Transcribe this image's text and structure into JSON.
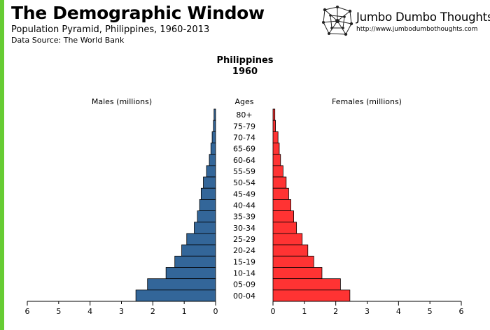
{
  "header": {
    "title": "The Demographic Window",
    "subtitle": "Population Pyramid, Philippines, 1960-2013",
    "source": "Data Source: The World Bank",
    "accent_color": "#66cc33"
  },
  "brand": {
    "name": "Jumbo Dumbo Thoughts",
    "url": "http://www.jumbodumbothoughts.com",
    "logo_icon": "network-globe-icon"
  },
  "chart_data": {
    "type": "bar",
    "orientation": "horizontal",
    "title": "Philippines",
    "subtitle": "1960",
    "left_label": "Males (millions)",
    "center_label": "Ages",
    "right_label": "Females (millions)",
    "xlim": [
      0,
      6
    ],
    "ticks": [
      0,
      2,
      4,
      6
    ],
    "tick_labels": [
      "0",
      "2",
      "4",
      "6"
    ],
    "minor_ticks": [
      1,
      3,
      5
    ],
    "categories": [
      "80+",
      "75-79",
      "70-74",
      "65-69",
      "60-64",
      "55-59",
      "50-54",
      "45-49",
      "40-44",
      "35-39",
      "30-34",
      "25-29",
      "20-24",
      "15-19",
      "10-14",
      "05-09",
      "00-04"
    ],
    "series": [
      {
        "name": "Males",
        "color": "#336699",
        "values": [
          0.05,
          0.07,
          0.11,
          0.15,
          0.2,
          0.29,
          0.39,
          0.46,
          0.51,
          0.58,
          0.68,
          0.92,
          1.08,
          1.3,
          1.58,
          2.17,
          2.54
        ]
      },
      {
        "name": "Females",
        "color": "#ff3333",
        "values": [
          0.06,
          0.08,
          0.16,
          0.2,
          0.24,
          0.32,
          0.42,
          0.5,
          0.57,
          0.66,
          0.75,
          0.93,
          1.11,
          1.3,
          1.56,
          2.15,
          2.45
        ]
      }
    ]
  }
}
